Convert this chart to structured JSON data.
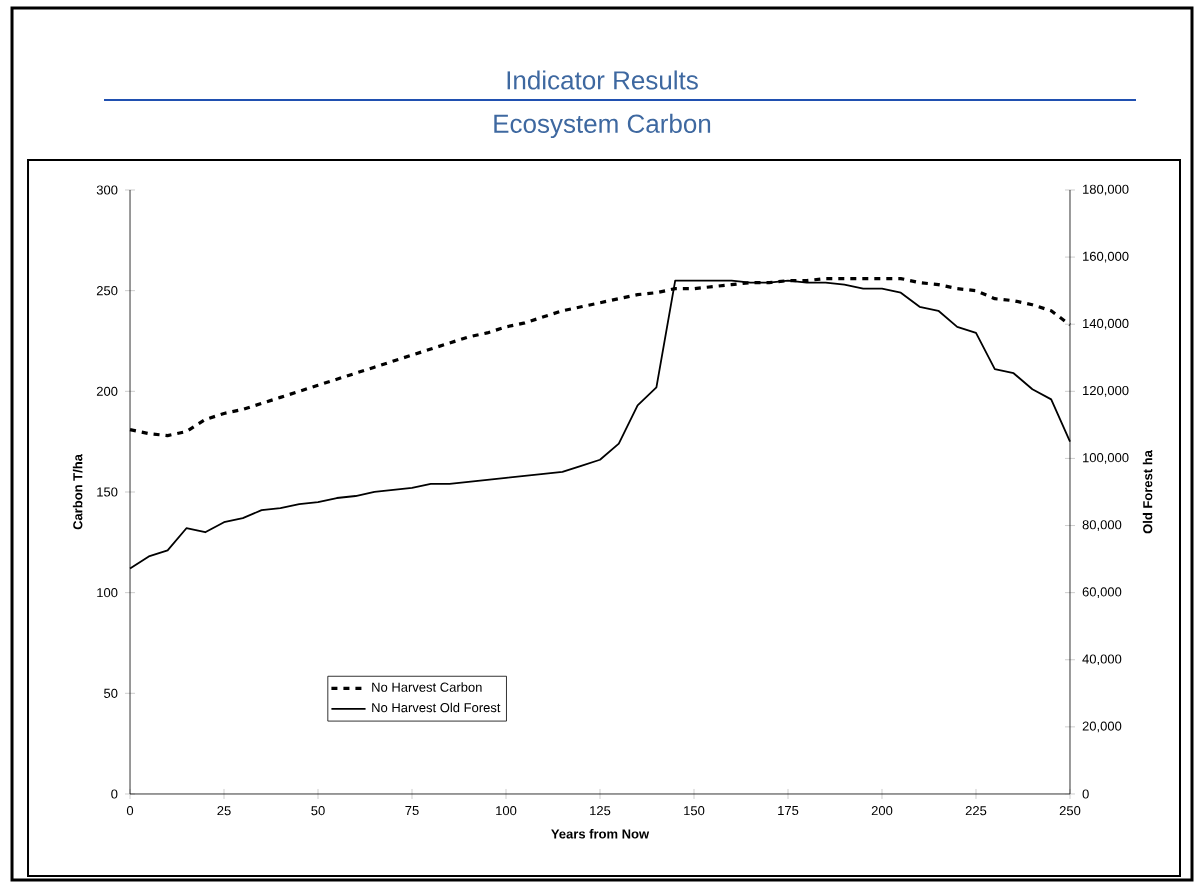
{
  "chart_data": {
    "type": "line",
    "title": "Indicator Results",
    "subtitle": "Ecosystem Carbon",
    "xlabel": "Years from Now",
    "ylabel": "Carbon T/ha",
    "y2label": "Old Forest ha",
    "x": [
      0,
      5,
      10,
      15,
      20,
      25,
      30,
      35,
      40,
      45,
      50,
      55,
      60,
      65,
      70,
      75,
      80,
      85,
      90,
      95,
      100,
      105,
      110,
      115,
      120,
      125,
      130,
      135,
      140,
      145,
      150,
      155,
      160,
      165,
      170,
      175,
      180,
      185,
      190,
      195,
      200,
      205,
      210,
      215,
      220,
      225,
      230,
      235,
      240,
      245,
      250
    ],
    "series": [
      {
        "name": "No Harvest Carbon",
        "color": "#000000",
        "line_style": "dashed",
        "values": [
          181,
          179,
          178,
          180,
          186,
          189,
          191,
          194,
          197,
          200,
          203,
          206,
          209,
          212,
          215,
          218,
          221,
          224,
          227,
          229,
          232,
          234,
          237,
          240,
          242,
          244,
          246,
          248,
          249,
          251,
          251,
          252,
          253,
          254,
          254,
          255,
          255,
          256,
          256,
          256,
          256,
          256,
          254,
          253,
          251,
          250,
          246,
          245,
          243,
          240,
          233
        ]
      },
      {
        "name": "No Harvest Old Forest",
        "color": "#000000",
        "line_style": "solid",
        "axis": "y2",
        "values": [
          67200,
          70800,
          72600,
          79200,
          78000,
          81000,
          82200,
          84600,
          85200,
          86400,
          87000,
          88200,
          88800,
          90000,
          90600,
          91200,
          92400,
          92400,
          93000,
          93600,
          94200,
          94800,
          95400,
          96000,
          97800,
          99600,
          104400,
          115800,
          121200,
          153000,
          153000,
          153000,
          153000,
          152400,
          152400,
          153000,
          152400,
          152400,
          151800,
          150600,
          150600,
          149400,
          145200,
          144000,
          139200,
          137400,
          126600,
          125400,
          120600,
          117600,
          105000
        ]
      }
    ],
    "xlim": [
      0,
      250
    ],
    "xticks": [
      0,
      25,
      50,
      75,
      100,
      125,
      150,
      175,
      200,
      225,
      250
    ],
    "ylim": [
      0,
      300
    ],
    "yticks": [
      0,
      50,
      100,
      150,
      200,
      250,
      300
    ],
    "y2lim": [
      0,
      180000
    ],
    "y2ticks": [
      {
        "value": 0,
        "label": "0"
      },
      {
        "value": 20000,
        "label": "20,000"
      },
      {
        "value": 40000,
        "label": "40,000"
      },
      {
        "value": 60000,
        "label": "60,000"
      },
      {
        "value": 80000,
        "label": "80,000"
      },
      {
        "value": 100000,
        "label": "100,000"
      },
      {
        "value": 120000,
        "label": "120,000"
      },
      {
        "value": 140000,
        "label": "140,000"
      },
      {
        "value": 160000,
        "label": "160,000"
      },
      {
        "value": 180000,
        "label": "180,000"
      }
    ],
    "grid": false,
    "legend": "bottom left",
    "marker": "none"
  }
}
